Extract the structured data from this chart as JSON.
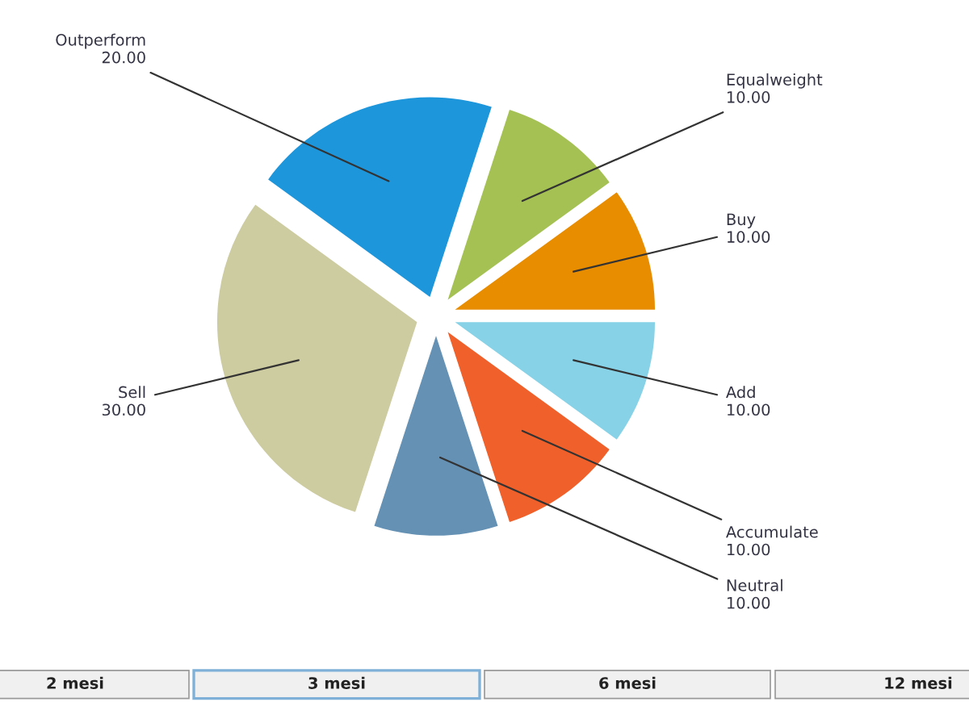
{
  "chart_data": {
    "type": "pie",
    "categories": [
      "Outperform",
      "Equalweight",
      "Buy",
      "Add",
      "Accumulate",
      "Neutral",
      "Sell"
    ],
    "values": [
      20,
      10,
      10,
      10,
      10,
      10,
      30
    ],
    "value_labels": [
      "20.00",
      "10.00",
      "10.00",
      "10.00",
      "10.00",
      "10.00",
      "30.00"
    ],
    "colors": [
      "#1e96dc",
      "#a5c153",
      "#e88c00",
      "#87d2e6",
      "#f0602a",
      "#6591b4",
      "#cdcba0"
    ],
    "annotations": [
      "2 mesi",
      "3 mesi",
      "6 mesi",
      "12 mesi"
    ]
  }
}
